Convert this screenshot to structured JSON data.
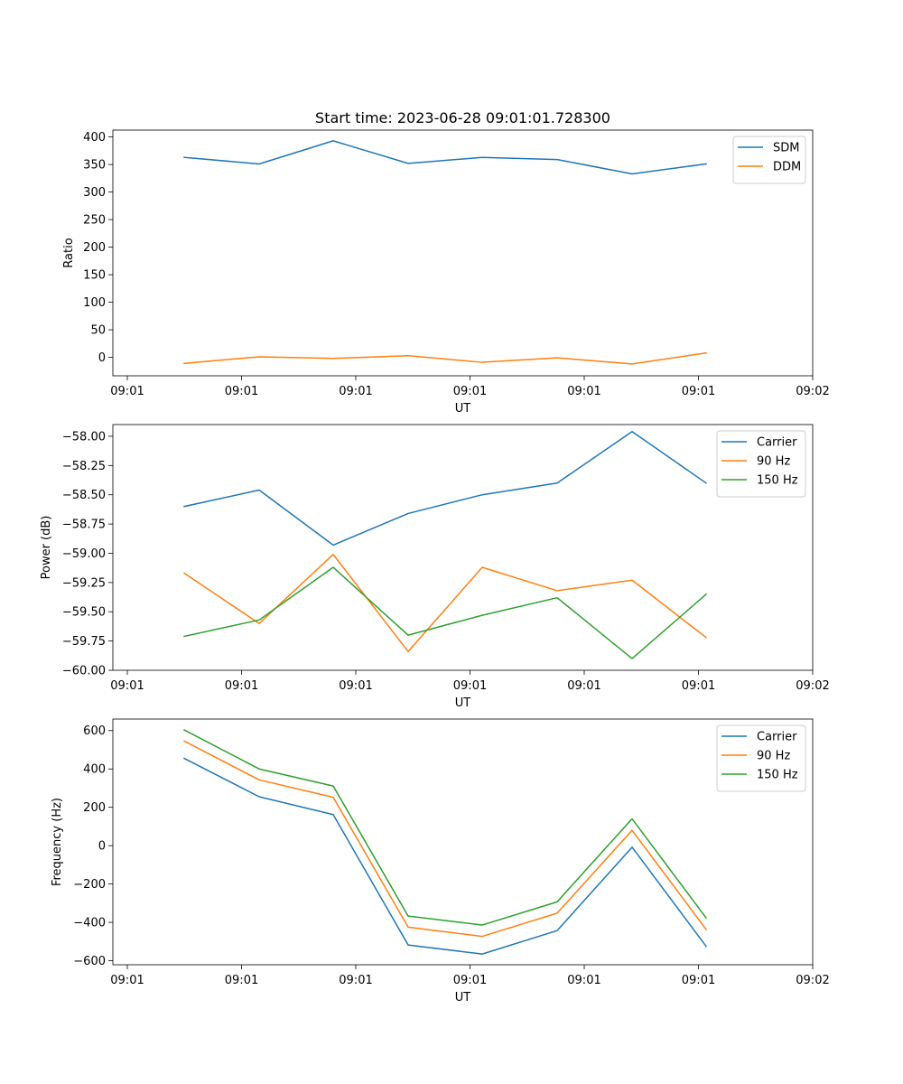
{
  "chart_data": [
    {
      "type": "line",
      "title": "Start time: 2023-06-28 09:01:01.728300",
      "xlabel": "UT",
      "ylabel": "Ratio",
      "x_ticks": [
        "09:01",
        "09:01",
        "09:01",
        "09:01",
        "09:01",
        "09:01",
        "09:02"
      ],
      "y_ticks": [
        0,
        50,
        100,
        150,
        200,
        250,
        300,
        350,
        400
      ],
      "ylim": [
        -33.5,
        412.5
      ],
      "legend_position": "top-right",
      "series": [
        {
          "name": "SDM",
          "color": "#1f77b4",
          "values": [
            363,
            351,
            393,
            352,
            363,
            359,
            333,
            351
          ]
        },
        {
          "name": "DDM",
          "color": "#ff7f0e",
          "values": [
            -11,
            1,
            -2,
            3,
            -9,
            -1,
            -12,
            8
          ]
        }
      ]
    },
    {
      "type": "line",
      "title": "",
      "xlabel": "UT",
      "ylabel": "Power (dB)",
      "x_ticks": [
        "09:01",
        "09:01",
        "09:01",
        "09:01",
        "09:01",
        "09:01",
        "09:02"
      ],
      "y_ticks": [
        -60.0,
        -59.75,
        -59.5,
        -59.25,
        -59.0,
        -58.75,
        -58.5,
        -58.25,
        -58.0
      ],
      "y_tick_labels": [
        "−60.00",
        "−59.75",
        "−59.50",
        "−59.25",
        "−59.00",
        "−58.75",
        "−58.50",
        "−58.25",
        "−58.00"
      ],
      "ylim": [
        -60.0,
        -57.9
      ],
      "legend_position": "top-right",
      "series": [
        {
          "name": "Carrier",
          "color": "#1f77b4",
          "values": [
            -58.6,
            -58.46,
            -58.93,
            -58.66,
            -58.5,
            -58.4,
            -57.96,
            -58.4
          ]
        },
        {
          "name": "90 Hz",
          "color": "#ff7f0e",
          "values": [
            -59.17,
            -59.6,
            -59.01,
            -59.84,
            -59.12,
            -59.32,
            -59.23,
            -59.72
          ]
        },
        {
          "name": "150 Hz",
          "color": "#2ca02c",
          "values": [
            -59.71,
            -59.57,
            -59.12,
            -59.7,
            -59.53,
            -59.38,
            -59.9,
            -59.35
          ]
        }
      ]
    },
    {
      "type": "line",
      "title": "",
      "xlabel": "UT",
      "ylabel": "Frequency (Hz)",
      "x_ticks": [
        "09:01",
        "09:01",
        "09:01",
        "09:01",
        "09:01",
        "09:01",
        "09:02"
      ],
      "y_ticks": [
        -600,
        -400,
        -200,
        0,
        200,
        400,
        600
      ],
      "y_tick_labels": [
        "−600",
        "−400",
        "−200",
        "0",
        "200",
        "400",
        "600"
      ],
      "ylim": [
        -621,
        660
      ],
      "legend_position": "top-right",
      "series": [
        {
          "name": "Carrier",
          "color": "#1f77b4",
          "values": [
            455,
            255,
            162,
            -518,
            -565,
            -443,
            -8,
            -525
          ]
        },
        {
          "name": "90 Hz",
          "color": "#ff7f0e",
          "values": [
            545,
            343,
            252,
            -425,
            -473,
            -352,
            80,
            -437
          ]
        },
        {
          "name": "150 Hz",
          "color": "#2ca02c",
          "values": [
            603,
            400,
            311,
            -367,
            -414,
            -293,
            140,
            -377
          ]
        }
      ]
    }
  ]
}
